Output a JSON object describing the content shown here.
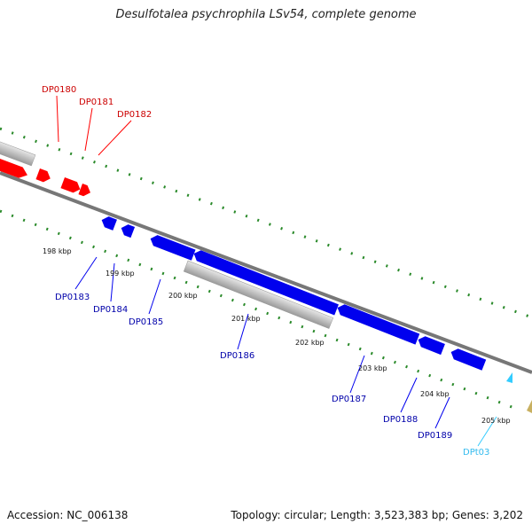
{
  "title": "Desulfotalea psychrophila LSv54, complete genome",
  "footer": {
    "accession": "Accession: NC_006138",
    "topology": "Topology: circular; Length: 3,523,383 bp; Genes: 3,202"
  },
  "colors": {
    "forward_cds": "#ff0000",
    "reverse_cds": "#0000ee",
    "trna": "#33ccff",
    "other_feature": "#c0c0c0",
    "backbone": "#777777",
    "tick": "#2a8a2a"
  },
  "ticks": [
    "198 kbp",
    "199 kbp",
    "200 kbp",
    "201 kbp",
    "202 kbp",
    "203 kbp",
    "204 kbp",
    "205 kbp"
  ],
  "genes_forward": [
    "DP0180",
    "DP0181",
    "DP0182"
  ],
  "genes_reverse": [
    "DP0183",
    "DP0184",
    "DP0185",
    "DP0186",
    "DP0187",
    "DP0188",
    "DP0189"
  ],
  "genes_trna": [
    "DPt03"
  ]
}
